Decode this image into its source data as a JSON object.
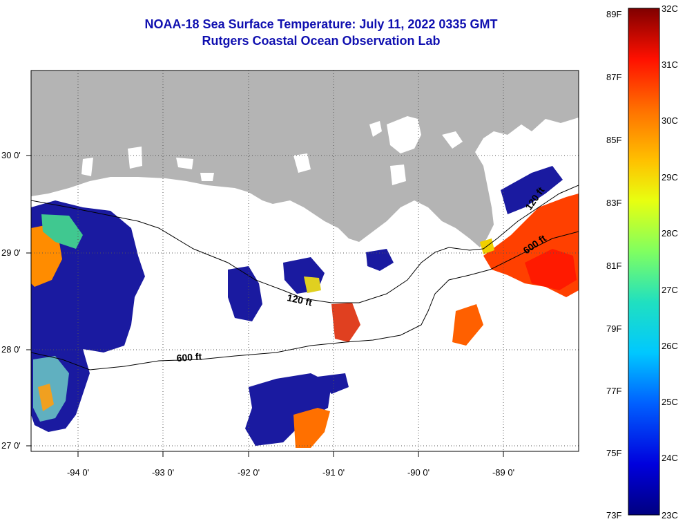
{
  "title": {
    "line1": "NOAA-18 Sea Surface Temperature:  July 11, 2022 0335 GMT",
    "line2": "Rutgers Coastal Ocean Observation Lab"
  },
  "map": {
    "lat_labels": [
      "30 0'",
      "29 0'",
      "28 0'",
      "27 0'"
    ],
    "lon_labels": [
      "-94 0'",
      "-93 0'",
      "-92 0'",
      "-91 0'",
      "-90 0'",
      "-89 0'"
    ],
    "contour_labels": {
      "inner_120_west": "120 ft",
      "outer_600_west": "600 ft",
      "inner_120_east": "120 ft",
      "outer_600_east": "600 ft"
    },
    "colors": {
      "land": "#b4b4b4",
      "cloud": "#ffffff",
      "cold": "#1a1aa0",
      "warm": "#ff5a00"
    }
  },
  "colorbar": {
    "fahrenheit_labels": [
      "89F",
      "87F",
      "85F",
      "83F",
      "81F",
      "79F",
      "77F",
      "75F",
      "73F"
    ],
    "celsius_labels": [
      "32C",
      "31C",
      "30C",
      "29C",
      "28C",
      "27C",
      "26C",
      "25C",
      "24C",
      "23C"
    ]
  }
}
